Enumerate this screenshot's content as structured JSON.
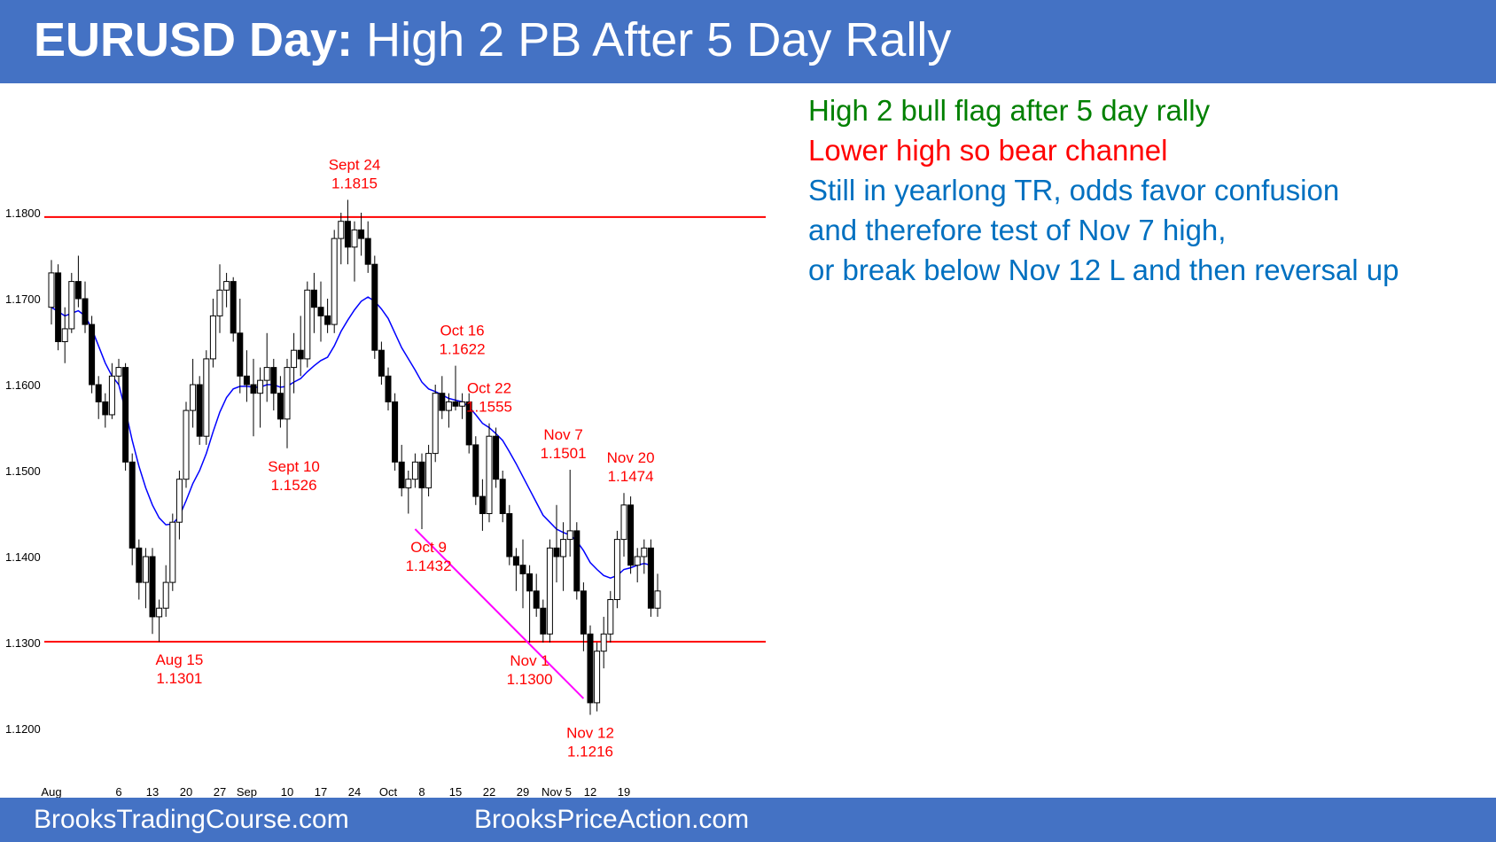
{
  "header": {
    "title_bold": "EURUSD Day:",
    "title_rest": "High 2 PB After 5 Day Rally"
  },
  "comments": [
    {
      "text": "High 2 bull flag after 5 day rally",
      "color": "#008000"
    },
    {
      "text": "Lower high so bear channel",
      "color": "#FF0000"
    },
    {
      "text": "Still in yearlong TR, odds favor confusion",
      "color": "#0070C0"
    },
    {
      "text": "and therefore test of Nov 7 high,",
      "color": "#0070C0"
    },
    {
      "text": "or break below Nov 12 L and then reversal up",
      "color": "#0070C0"
    }
  ],
  "footer": {
    "left": "BrooksTradingCourse.com",
    "right": "BrooksPriceAction.com"
  },
  "colors": {
    "banner": "#4472C4",
    "bull_candle": "#ffffff",
    "bear_candle": "#000000",
    "moving_average": "#0000FF",
    "support_resistance_line": "#FF0000",
    "bear_trendline": "#FF00FF",
    "annotation": "#FF0000"
  },
  "chart_data": {
    "type": "candlestick",
    "title": "",
    "xlabel": "",
    "ylabel": "",
    "ylim": [
      1.115,
      1.187
    ],
    "y_ticks": [
      "1.1200",
      "1.1300",
      "1.1400",
      "1.1500",
      "1.1600",
      "1.1700",
      "1.1800"
    ],
    "y_tick_values": [
      1.12,
      1.13,
      1.14,
      1.15,
      1.16,
      1.17,
      1.18
    ],
    "x_ticks": [
      {
        "label": "Aug",
        "bar": 0
      },
      {
        "label": "6",
        "bar": 10
      },
      {
        "label": "13",
        "bar": 15
      },
      {
        "label": "20",
        "bar": 20
      },
      {
        "label": "27",
        "bar": 25
      },
      {
        "label": "Sep",
        "bar": 29
      },
      {
        "label": "10",
        "bar": 35
      },
      {
        "label": "17",
        "bar": 40
      },
      {
        "label": "24",
        "bar": 45
      },
      {
        "label": "Oct",
        "bar": 50
      },
      {
        "label": "8",
        "bar": 55
      },
      {
        "label": "15",
        "bar": 60
      },
      {
        "label": "22",
        "bar": 65
      },
      {
        "label": "29",
        "bar": 70
      },
      {
        "label": "Nov 5",
        "bar": 75
      },
      {
        "label": "12",
        "bar": 80
      },
      {
        "label": "19",
        "bar": 85
      }
    ],
    "horizontal_lines": [
      1.1795,
      1.1301
    ],
    "trendline": {
      "from_bar": 54,
      "from_price": 1.1432,
      "to_bar": 79,
      "to_price": 1.1235
    },
    "annotations": [
      {
        "label": "Sept 24",
        "value": "1.1815",
        "bar": 45,
        "price": 1.1815,
        "position": "above"
      },
      {
        "label": "Oct 16",
        "value": "1.1622",
        "bar": 61,
        "price": 1.1622,
        "position": "above"
      },
      {
        "label": "Oct 22",
        "value": "1.1555",
        "bar": 65,
        "price": 1.1555,
        "position": "above"
      },
      {
        "label": "Nov 7",
        "value": "1.1501",
        "bar": 76,
        "price": 1.1501,
        "position": "above"
      },
      {
        "label": "Nov 20",
        "value": "1.1474",
        "bar": 86,
        "price": 1.1474,
        "position": "above"
      },
      {
        "label": "Sept 10",
        "value": "1.1526",
        "bar": 36,
        "price": 1.1526,
        "position": "below"
      },
      {
        "label": "Oct 9",
        "value": "1.1432",
        "bar": 56,
        "price": 1.1432,
        "position": "below"
      },
      {
        "label": "Aug 15",
        "value": "1.1301",
        "bar": 19,
        "price": 1.1301,
        "position": "below"
      },
      {
        "label": "Nov 1",
        "value": "1.1300",
        "bar": 71,
        "price": 1.13,
        "position": "below"
      },
      {
        "label": "Nov 12",
        "value": "1.1216",
        "bar": 80,
        "price": 1.1216,
        "position": "below"
      }
    ],
    "candles": [
      [
        1.169,
        1.1745,
        1.167,
        1.173
      ],
      [
        1.173,
        1.174,
        1.164,
        1.165
      ],
      [
        1.165,
        1.169,
        1.1625,
        1.1665
      ],
      [
        1.1665,
        1.173,
        1.166,
        1.172
      ],
      [
        1.172,
        1.175,
        1.169,
        1.17
      ],
      [
        1.17,
        1.172,
        1.166,
        1.167
      ],
      [
        1.167,
        1.168,
        1.159,
        1.16
      ],
      [
        1.16,
        1.161,
        1.156,
        1.158
      ],
      [
        1.158,
        1.159,
        1.155,
        1.1565
      ],
      [
        1.1565,
        1.1625,
        1.156,
        1.161
      ],
      [
        1.161,
        1.163,
        1.16,
        1.162
      ],
      [
        1.162,
        1.1625,
        1.15,
        1.151
      ],
      [
        1.151,
        1.152,
        1.139,
        1.141
      ],
      [
        1.141,
        1.142,
        1.135,
        1.137
      ],
      [
        1.137,
        1.141,
        1.134,
        1.14
      ],
      [
        1.14,
        1.141,
        1.131,
        1.133
      ],
      [
        1.133,
        1.135,
        1.1301,
        1.134
      ],
      [
        1.134,
        1.139,
        1.133,
        1.137
      ],
      [
        1.137,
        1.145,
        1.136,
        1.144
      ],
      [
        1.144,
        1.15,
        1.142,
        1.149
      ],
      [
        1.149,
        1.158,
        1.148,
        1.157
      ],
      [
        1.157,
        1.163,
        1.155,
        1.16
      ],
      [
        1.16,
        1.161,
        1.153,
        1.154
      ],
      [
        1.154,
        1.164,
        1.153,
        1.163
      ],
      [
        1.163,
        1.17,
        1.162,
        1.168
      ],
      [
        1.168,
        1.174,
        1.166,
        1.171
      ],
      [
        1.171,
        1.173,
        1.169,
        1.172
      ],
      [
        1.172,
        1.1725,
        1.165,
        1.166
      ],
      [
        1.166,
        1.17,
        1.159,
        1.161
      ],
      [
        1.161,
        1.164,
        1.158,
        1.16
      ],
      [
        1.16,
        1.163,
        1.154,
        1.159
      ],
      [
        1.159,
        1.162,
        1.155,
        1.1605
      ],
      [
        1.1605,
        1.166,
        1.158,
        1.162
      ],
      [
        1.162,
        1.163,
        1.157,
        1.159
      ],
      [
        1.159,
        1.161,
        1.155,
        1.156
      ],
      [
        1.156,
        1.163,
        1.1526,
        1.162
      ],
      [
        1.162,
        1.166,
        1.159,
        1.164
      ],
      [
        1.164,
        1.168,
        1.161,
        1.163
      ],
      [
        1.163,
        1.172,
        1.162,
        1.171
      ],
      [
        1.171,
        1.173,
        1.166,
        1.169
      ],
      [
        1.169,
        1.172,
        1.165,
        1.168
      ],
      [
        1.168,
        1.17,
        1.166,
        1.167
      ],
      [
        1.167,
        1.178,
        1.166,
        1.177
      ],
      [
        1.177,
        1.18,
        1.174,
        1.179
      ],
      [
        1.179,
        1.1815,
        1.174,
        1.176
      ],
      [
        1.176,
        1.179,
        1.172,
        1.178
      ],
      [
        1.178,
        1.18,
        1.175,
        1.177
      ],
      [
        1.177,
        1.179,
        1.173,
        1.174
      ],
      [
        1.174,
        1.175,
        1.163,
        1.164
      ],
      [
        1.164,
        1.165,
        1.16,
        1.161
      ],
      [
        1.161,
        1.162,
        1.157,
        1.158
      ],
      [
        1.158,
        1.159,
        1.15,
        1.151
      ],
      [
        1.151,
        1.153,
        1.147,
        1.148
      ],
      [
        1.148,
        1.15,
        1.145,
        1.149
      ],
      [
        1.149,
        1.152,
        1.148,
        1.151
      ],
      [
        1.151,
        1.152,
        1.1432,
        1.148
      ],
      [
        1.148,
        1.153,
        1.147,
        1.152
      ],
      [
        1.152,
        1.16,
        1.151,
        1.159
      ],
      [
        1.159,
        1.161,
        1.156,
        1.157
      ],
      [
        1.157,
        1.159,
        1.155,
        1.158
      ],
      [
        1.158,
        1.1622,
        1.157,
        1.1575
      ],
      [
        1.1575,
        1.159,
        1.156,
        1.158
      ],
      [
        1.158,
        1.159,
        1.152,
        1.153
      ],
      [
        1.153,
        1.154,
        1.146,
        1.147
      ],
      [
        1.147,
        1.149,
        1.143,
        1.145
      ],
      [
        1.145,
        1.1555,
        1.144,
        1.154
      ],
      [
        1.154,
        1.155,
        1.148,
        1.149
      ],
      [
        1.149,
        1.15,
        1.144,
        1.145
      ],
      [
        1.145,
        1.146,
        1.139,
        1.14
      ],
      [
        1.14,
        1.141,
        1.136,
        1.139
      ],
      [
        1.139,
        1.142,
        1.134,
        1.138
      ],
      [
        1.138,
        1.139,
        1.13,
        1.136
      ],
      [
        1.136,
        1.138,
        1.133,
        1.134
      ],
      [
        1.134,
        1.135,
        1.13,
        1.131
      ],
      [
        1.131,
        1.142,
        1.13,
        1.141
      ],
      [
        1.141,
        1.146,
        1.137,
        1.14
      ],
      [
        1.14,
        1.144,
        1.136,
        1.142
      ],
      [
        1.142,
        1.1501,
        1.14,
        1.143
      ],
      [
        1.143,
        1.144,
        1.135,
        1.136
      ],
      [
        1.136,
        1.137,
        1.129,
        1.131
      ],
      [
        1.131,
        1.132,
        1.1216,
        1.123
      ],
      [
        1.123,
        1.13,
        1.122,
        1.129
      ],
      [
        1.129,
        1.133,
        1.127,
        1.131
      ],
      [
        1.131,
        1.136,
        1.13,
        1.135
      ],
      [
        1.135,
        1.143,
        1.134,
        1.142
      ],
      [
        1.142,
        1.1474,
        1.14,
        1.146
      ],
      [
        1.146,
        1.147,
        1.138,
        1.139
      ],
      [
        1.139,
        1.141,
        1.137,
        1.14
      ],
      [
        1.14,
        1.142,
        1.138,
        1.141
      ],
      [
        1.141,
        1.142,
        1.133,
        1.134
      ],
      [
        1.134,
        1.138,
        1.133,
        1.136
      ]
    ],
    "moving_average": [
      1.169,
      1.1685,
      1.168,
      1.1683,
      1.1686,
      1.168,
      1.1665,
      1.1645,
      1.1625,
      1.161,
      1.16,
      1.157,
      1.1535,
      1.1505,
      1.148,
      1.146,
      1.1445,
      1.1437,
      1.1438,
      1.1447,
      1.1465,
      1.1485,
      1.15,
      1.152,
      1.1545,
      1.1568,
      1.1585,
      1.1595,
      1.1598,
      1.1598,
      1.1597,
      1.1597,
      1.16,
      1.16,
      1.1597,
      1.1598,
      1.1603,
      1.1607,
      1.1615,
      1.1622,
      1.1628,
      1.1632,
      1.1645,
      1.1662,
      1.1675,
      1.1687,
      1.1697,
      1.1702,
      1.1697,
      1.1688,
      1.1677,
      1.166,
      1.1643,
      1.163,
      1.1617,
      1.1603,
      1.1595,
      1.1592,
      1.1588,
      1.1584,
      1.1582,
      1.158,
      1.1574,
      1.1565,
      1.1555,
      1.155,
      1.1543,
      1.1535,
      1.1522,
      1.1508,
      1.1493,
      1.1478,
      1.1463,
      1.1448,
      1.144,
      1.1432,
      1.1428,
      1.1425,
      1.1418,
      1.1407,
      1.1393,
      1.1385,
      1.1378,
      1.1375,
      1.1378,
      1.1385,
      1.1387,
      1.139,
      1.1392,
      1.139
    ]
  }
}
